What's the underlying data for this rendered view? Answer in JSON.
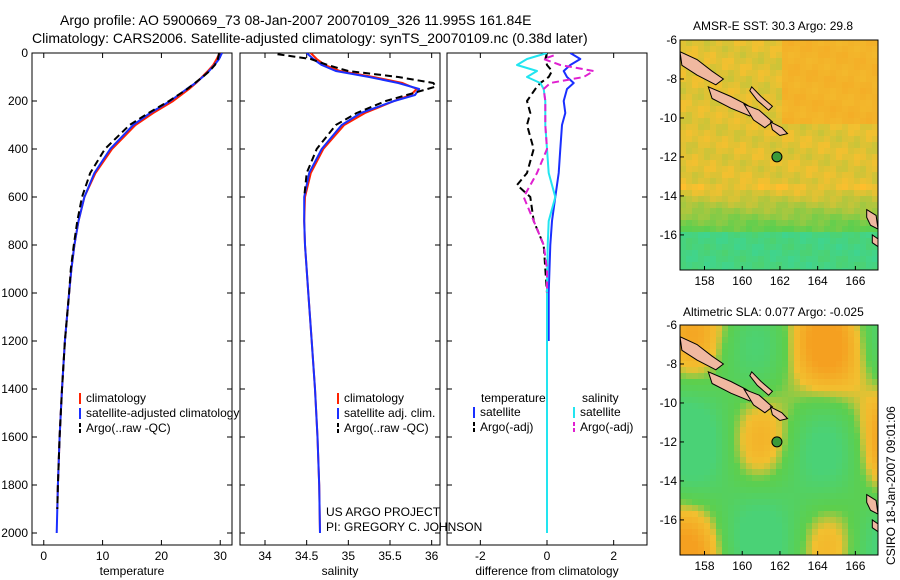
{
  "title": {
    "line1": "Argo profile: AO 5900669_73 08-Jan-2007 20070109_326 11.995S 161.84E",
    "line2": "Climatology: CARS2006. Satellite-adjusted climatology: synTS_20070109.nc (0.38d later)"
  },
  "credit": {
    "line1": "US ARGO PROJECT",
    "line2": "PI: GREGORY C. JOHNSON"
  },
  "timestamp": "CSIRO 18-Jan-2007 09:01:06",
  "colors": {
    "climatology": "#ff2200",
    "satellite": "#1a2fff",
    "argo": "#000000",
    "satellite_salinity": "#22e5f0",
    "argo_salinity_adj": "#e020d0",
    "map_bg": "#f2c030",
    "map_green": "#5ccf4f",
    "map_cyan": "#30d7b0",
    "map_orange": "#f5a020",
    "land": "#f0b8a0",
    "coast": "#000000"
  },
  "chart_data": [
    {
      "id": "temperature",
      "type": "line",
      "xlabel": "temperature",
      "ylabel": "",
      "xlim": [
        -2,
        32
      ],
      "ylim": [
        2050,
        0
      ],
      "xticks": [
        0,
        10,
        20,
        30
      ],
      "yticks": [
        0,
        200,
        400,
        600,
        800,
        1000,
        1200,
        1400,
        1600,
        1800,
        2000
      ],
      "legend": {
        "placement": "lower-right",
        "labels": [
          "climatology",
          "satellite-adjusted climatology",
          "Argo(..raw -QC)"
        ]
      },
      "series": [
        {
          "name": "climatology",
          "color": "#ff2200",
          "dash": "solid",
          "depth": [
            0,
            25,
            50,
            75,
            100,
            125,
            150,
            200,
            250,
            300,
            400,
            500,
            600,
            700,
            800,
            900,
            1000,
            1200,
            1400,
            1600,
            1800,
            1900
          ],
          "values": [
            29.9,
            29.4,
            28.8,
            27.9,
            26.9,
            25.9,
            24.7,
            22.0,
            18.6,
            15.6,
            11.6,
            8.8,
            6.9,
            5.9,
            5.2,
            4.7,
            4.3,
            3.6,
            3.1,
            2.7,
            2.4,
            2.3
          ]
        },
        {
          "name": "satellite-adjusted climatology",
          "color": "#1a2fff",
          "dash": "solid",
          "depth": [
            0,
            25,
            50,
            75,
            100,
            125,
            150,
            200,
            250,
            300,
            400,
            500,
            600,
            700,
            800,
            900,
            1000,
            1200,
            1400,
            1600,
            1800,
            2000
          ],
          "values": [
            30.3,
            29.8,
            29.0,
            28.1,
            27.0,
            25.8,
            24.3,
            21.5,
            18.1,
            15.2,
            11.3,
            8.6,
            6.9,
            5.9,
            5.2,
            4.7,
            4.3,
            3.6,
            3.1,
            2.7,
            2.4,
            2.2
          ]
        },
        {
          "name": "Argo(..raw -QC)",
          "color": "#000000",
          "dash": "dashed",
          "depth": [
            0,
            25,
            50,
            75,
            100,
            125,
            150,
            200,
            250,
            300,
            400,
            500,
            600,
            700,
            800,
            900,
            1000,
            1200,
            1400,
            1600,
            1800,
            1900
          ],
          "values": [
            29.8,
            29.6,
            29.1,
            28.2,
            27.0,
            25.7,
            24.4,
            21.3,
            17.8,
            14.6,
            10.4,
            7.9,
            6.5,
            5.7,
            5.1,
            4.6,
            4.3,
            3.6,
            3.1,
            2.7,
            2.4,
            2.3
          ]
        }
      ]
    },
    {
      "id": "salinity",
      "type": "line",
      "xlabel": "salinity",
      "ylabel": "",
      "xlim": [
        33.7,
        36.1
      ],
      "ylim": [
        2050,
        0
      ],
      "xticks": [
        34,
        34.5,
        35,
        35.5,
        36
      ],
      "legend": {
        "placement": "lower-right",
        "labels": [
          "climatology",
          "satellite adj. clim.",
          "Argo(..raw -QC)"
        ]
      },
      "series": [
        {
          "name": "climatology",
          "color": "#ff2200",
          "dash": "solid",
          "depth": [
            0,
            25,
            50,
            75,
            100,
            125,
            150,
            175,
            200,
            250,
            300,
            400,
            500,
            600,
            700,
            800,
            1000,
            1200,
            1400,
            1600,
            1800,
            2000
          ],
          "values": [
            34.55,
            34.62,
            34.72,
            34.9,
            35.3,
            35.65,
            35.82,
            35.75,
            35.55,
            35.2,
            34.95,
            34.7,
            34.55,
            34.48,
            34.47,
            34.48,
            34.52,
            34.56,
            34.6,
            34.63,
            34.65,
            34.66
          ]
        },
        {
          "name": "satellite adj. clim.",
          "color": "#1a2fff",
          "dash": "solid",
          "depth": [
            0,
            25,
            50,
            75,
            100,
            125,
            150,
            175,
            200,
            250,
            300,
            400,
            500,
            600,
            700,
            800,
            1000,
            1200,
            1400,
            1600,
            1800,
            2000
          ],
          "values": [
            34.5,
            34.58,
            34.68,
            34.85,
            35.25,
            35.6,
            35.85,
            35.8,
            35.55,
            35.15,
            34.92,
            34.68,
            34.53,
            34.47,
            34.47,
            34.48,
            34.52,
            34.56,
            34.6,
            34.63,
            34.65,
            34.66
          ]
        },
        {
          "name": "Argo(..raw -QC)",
          "color": "#000000",
          "dash": "dashed",
          "depth": [
            5,
            15,
            25,
            50,
            75,
            100,
            125,
            140,
            150,
            175,
            200,
            250,
            300,
            400,
            500,
            600
          ],
          "values": [
            34.15,
            34.35,
            34.55,
            34.75,
            35.0,
            35.6,
            36.02,
            36.05,
            35.95,
            35.7,
            35.45,
            35.1,
            34.85,
            34.62,
            34.5,
            34.47
          ]
        }
      ]
    },
    {
      "id": "difference",
      "type": "line",
      "xlabel": "difference from climatology",
      "ylabel": "",
      "xlim": [
        -3,
        3
      ],
      "ylim": [
        2050,
        0
      ],
      "xticks": [
        -2,
        0,
        2
      ],
      "legend": {
        "placement": "lower-middle",
        "temperature_heading": "temperature",
        "salinity_heading": "salinity",
        "labels": [
          "satellite",
          "Argo(-adj)",
          "satellite",
          "Argo(-adj)"
        ]
      },
      "series": [
        {
          "name": "temperature satellite",
          "color": "#1a2fff",
          "dash": "solid",
          "depth": [
            0,
            25,
            50,
            75,
            100,
            125,
            150,
            200,
            250,
            300,
            400,
            500,
            600,
            700,
            800,
            1000,
            1200
          ],
          "values": [
            0.7,
            1.0,
            0.7,
            0.5,
            0.6,
            0.8,
            0.6,
            0.5,
            0.55,
            0.45,
            0.4,
            0.35,
            0.25,
            0.15,
            0.1,
            0.05,
            0.05
          ]
        },
        {
          "name": "temperature Argo(-adj)",
          "color": "#000000",
          "dash": "dashed",
          "depth": [
            0,
            25,
            50,
            75,
            100,
            125,
            150,
            200,
            250,
            300,
            400,
            500,
            550,
            600,
            700,
            800,
            900,
            1000
          ],
          "values": [
            0.0,
            -0.05,
            0.0,
            0.15,
            0.05,
            -0.2,
            -0.35,
            -0.6,
            -0.5,
            -0.6,
            -0.4,
            -0.6,
            -0.9,
            -0.5,
            -0.4,
            -0.1,
            -0.05,
            0.0
          ]
        },
        {
          "name": "salinity satellite",
          "color": "#22e5f0",
          "dash": "solid",
          "depth": [
            0,
            25,
            50,
            75,
            100,
            125,
            150,
            200,
            300,
            400,
            500,
            600,
            700,
            800,
            1000,
            1500,
            2000
          ],
          "values": [
            0.0,
            -0.6,
            -0.9,
            -0.3,
            -0.6,
            -0.2,
            -0.1,
            -0.05,
            -0.05,
            0.0,
            0.05,
            0.25,
            0.05,
            0.02,
            0.0,
            0.0,
            0.0
          ]
        },
        {
          "name": "salinity Argo(-adj)",
          "color": "#e020d0",
          "dash": "dashed",
          "depth": [
            10,
            25,
            50,
            75,
            100,
            125,
            150,
            200,
            300,
            400,
            500,
            600,
            700,
            800,
            900,
            1000
          ],
          "values": [
            0.2,
            -0.1,
            0.4,
            1.4,
            1.1,
            0.1,
            -0.1,
            -0.05,
            -0.05,
            0.0,
            -0.3,
            -0.7,
            -0.4,
            -0.1,
            0.0,
            0.0
          ]
        }
      ]
    },
    {
      "id": "sst_map",
      "type": "heatmap",
      "title": "AMSR-E SST: 30.3 Argo: 29.8",
      "xlim": [
        156.7,
        167.2
      ],
      "ylim": [
        -6,
        -17.8
      ],
      "xticks": [
        158,
        160,
        162,
        164,
        166
      ],
      "yticks": [
        -6,
        -8,
        -10,
        -12,
        -14,
        -16
      ],
      "marker": {
        "lon": 161.84,
        "lat": -11.995
      }
    },
    {
      "id": "sla_map",
      "type": "heatmap",
      "title": "Altimetric SLA: 0.077 Argo: -0.025",
      "xlim": [
        156.7,
        167.2
      ],
      "ylim": [
        -6,
        -17.8
      ],
      "xticks": [
        158,
        160,
        162,
        164,
        166
      ],
      "yticks": [
        -6,
        -8,
        -10,
        -12,
        -14,
        -16
      ],
      "marker": {
        "lon": 161.84,
        "lat": -11.995
      }
    }
  ]
}
